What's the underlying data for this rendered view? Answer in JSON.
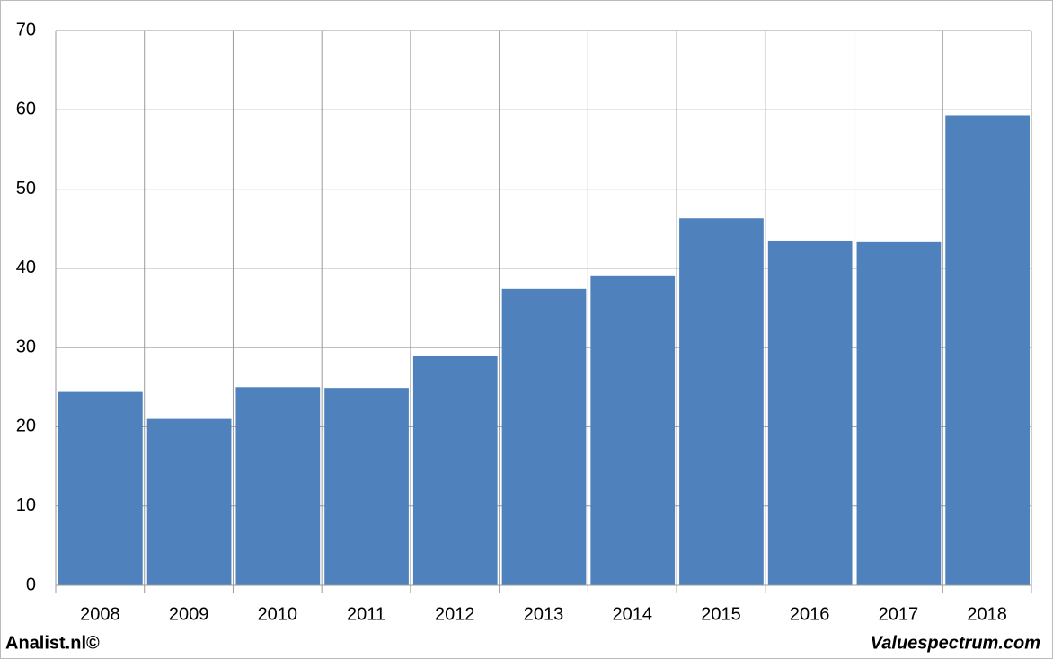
{
  "chart_data": {
    "type": "bar",
    "categories": [
      "2008",
      "2009",
      "2010",
      "2011",
      "2012",
      "2013",
      "2014",
      "2015",
      "2016",
      "2017",
      "2018"
    ],
    "values": [
      24.4,
      21.0,
      25.0,
      24.9,
      29.0,
      37.4,
      39.1,
      46.3,
      43.5,
      43.4,
      59.3
    ],
    "color": "#4f81bd",
    "ylim": [
      0,
      70
    ],
    "yticks": [
      0,
      10,
      20,
      30,
      40,
      50,
      60,
      70
    ],
    "grid": true
  },
  "footer": {
    "left": "Analist.nl©",
    "right": "Valuespectrum.com"
  }
}
